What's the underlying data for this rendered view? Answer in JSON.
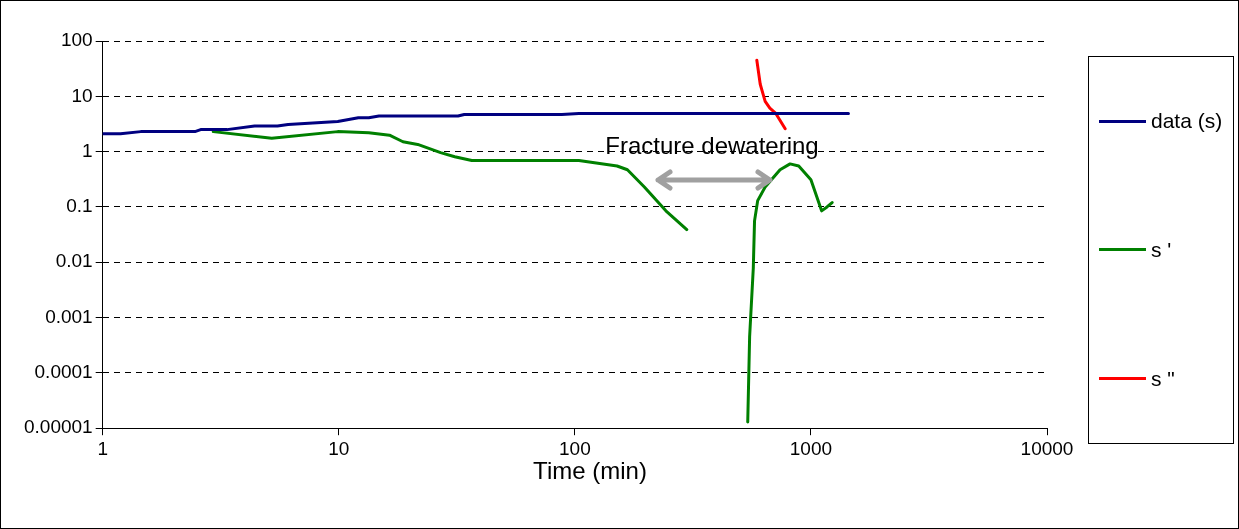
{
  "chart_data": {
    "type": "line",
    "xlabel": "Time (min)",
    "log": "xy",
    "xlim": [
      1,
      10000
    ],
    "xticks": [
      1,
      10,
      100,
      1000,
      10000
    ],
    "ylim": [
      1e-05,
      100
    ],
    "yticks": [
      100,
      10,
      1,
      0.1,
      0.01,
      0.001,
      {
        "value": 0.0001,
        "label": "0.0001"
      },
      {
        "value": 1e-05,
        "label": "0.00001"
      }
    ],
    "grid": "y",
    "legend": "right",
    "marker": "none",
    "line_style": "solid",
    "annotations": [
      "Fracture dewatering"
    ],
    "series": [
      {
        "name": "data (s)",
        "color": "#000080",
        "x": [
          1,
          1.19,
          1.45,
          2.46,
          2.6,
          3.36,
          4.4,
          5.5,
          6.1,
          9.9,
          12.1,
          13.4,
          14.8,
          32,
          34,
          88,
          104,
          1442
        ],
        "values": [
          2.1,
          2.1,
          2.3,
          2.3,
          2.5,
          2.5,
          2.9,
          2.9,
          3.1,
          3.5,
          4.1,
          4.1,
          4.4,
          4.4,
          4.7,
          4.7,
          4.9,
          4.9
        ]
      },
      {
        "name": "s '",
        "color": "#008000",
        "x": [
          2.94,
          5.2,
          9.9,
          13.4,
          16.4,
          18.7,
          21.6,
          27,
          31,
          36.6,
          104,
          151,
          167,
          197,
          243,
          298,
          420,
          540,
          550,
          570,
          577,
          595,
          640,
          740,
          816,
          888,
          1000,
          1110,
          1170,
          1230
        ],
        "values": [
          2.3,
          1.74,
          2.3,
          2.2,
          1.98,
          1.51,
          1.35,
          0.96,
          0.81,
          0.69,
          0.69,
          0.55,
          0.47,
          0.23,
          0.085,
          0.039,
          null,
          1.3e-05,
          0.00045,
          0.0078,
          0.056,
          0.13,
          0.23,
          0.47,
          0.6,
          0.55,
          0.31,
          0.085,
          0.1,
          0.12
        ]
      },
      {
        "name": "s \"",
        "color": "#ff0000",
        "x": [
          590,
          610,
          640,
          670,
          710,
          778
        ],
        "values": [
          45,
          16.5,
          8.1,
          6.1,
          4.9,
          2.6
        ]
      }
    ]
  }
}
